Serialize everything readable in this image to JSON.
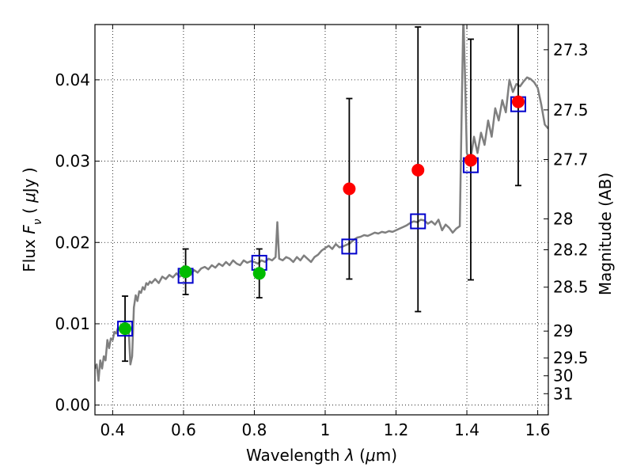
{
  "chart_data": {
    "type": "scatter",
    "xlabel": "Wavelength  λ (μm)",
    "ylabel": "Flux  F<sub>ν</sub> ( μJy )",
    "ylabel_right": "Magnitude (AB)",
    "xlim": [
      0.35,
      1.63
    ],
    "ylim": [
      -0.0012,
      0.0468
    ],
    "grid": true,
    "x_ticks": [
      0.4,
      0.6,
      0.8,
      1.0,
      1.2,
      1.4,
      1.6
    ],
    "x_tick_labels": [
      "0.4",
      "0.6",
      "0.8",
      "1",
      "1.2",
      "1.4",
      "1.6"
    ],
    "y_ticks": [
      0.0,
      0.01,
      0.02,
      0.03,
      0.04
    ],
    "y_tick_labels": [
      "0.00",
      "0.01",
      "0.02",
      "0.03",
      "0.04"
    ],
    "right_ticks": [
      {
        "label": "27.3",
        "flux": 0.0437
      },
      {
        "label": "27.5",
        "flux": 0.0363
      },
      {
        "label": "27.7",
        "flux": 0.0302
      },
      {
        "label": "28",
        "flux": 0.0229
      },
      {
        "label": "28.2",
        "flux": 0.0191
      },
      {
        "label": "28.5",
        "flux": 0.0145
      },
      {
        "label": "29",
        "flux": 0.0091
      },
      {
        "label": "29.5",
        "flux": 0.0058
      },
      {
        "label": "30",
        "flux": 0.0036
      },
      {
        "label": "31",
        "flux": 0.0014
      }
    ],
    "colors": {
      "sed_line": "#7f7f7f",
      "green": "#00bb00",
      "red": "#ff0000",
      "model": "#0000cc",
      "errorbar": "#000000"
    },
    "series": [
      {
        "values": [
          [
            0.35,
            0.0045
          ],
          [
            0.355,
            0.005
          ],
          [
            0.36,
            0.003
          ],
          [
            0.365,
            0.0055
          ],
          [
            0.37,
            0.0045
          ],
          [
            0.375,
            0.006
          ],
          [
            0.38,
            0.0055
          ],
          [
            0.385,
            0.008
          ],
          [
            0.39,
            0.007
          ],
          [
            0.395,
            0.0082
          ],
          [
            0.4,
            0.008
          ],
          [
            0.405,
            0.009
          ],
          [
            0.41,
            0.0088
          ],
          [
            0.415,
            0.0095
          ],
          [
            0.42,
            0.0092
          ],
          [
            0.425,
            0.0098
          ],
          [
            0.43,
            0.0096
          ],
          [
            0.435,
            0.0099
          ],
          [
            0.44,
            0.0098
          ],
          [
            0.445,
            0.0095
          ],
          [
            0.45,
            0.005
          ],
          [
            0.455,
            0.006
          ],
          [
            0.46,
            0.012
          ],
          [
            0.465,
            0.0135
          ],
          [
            0.47,
            0.0128
          ],
          [
            0.475,
            0.014
          ],
          [
            0.48,
            0.0138
          ],
          [
            0.485,
            0.0145
          ],
          [
            0.49,
            0.0142
          ],
          [
            0.495,
            0.015
          ],
          [
            0.5,
            0.0148
          ],
          [
            0.505,
            0.0152
          ],
          [
            0.51,
            0.015
          ],
          [
            0.52,
            0.0155
          ],
          [
            0.53,
            0.015
          ],
          [
            0.54,
            0.0158
          ],
          [
            0.55,
            0.0155
          ],
          [
            0.56,
            0.016
          ],
          [
            0.57,
            0.0157
          ],
          [
            0.58,
            0.0162
          ],
          [
            0.59,
            0.0158
          ],
          [
            0.6,
            0.0161
          ],
          [
            0.61,
            0.0163
          ],
          [
            0.62,
            0.016
          ],
          [
            0.63,
            0.0166
          ],
          [
            0.64,
            0.0163
          ],
          [
            0.65,
            0.0168
          ],
          [
            0.66,
            0.017
          ],
          [
            0.67,
            0.0167
          ],
          [
            0.68,
            0.0172
          ],
          [
            0.69,
            0.0169
          ],
          [
            0.7,
            0.0174
          ],
          [
            0.71,
            0.0171
          ],
          [
            0.72,
            0.0176
          ],
          [
            0.73,
            0.0172
          ],
          [
            0.74,
            0.0178
          ],
          [
            0.75,
            0.0174
          ],
          [
            0.76,
            0.0172
          ],
          [
            0.77,
            0.0178
          ],
          [
            0.78,
            0.0175
          ],
          [
            0.79,
            0.0177
          ],
          [
            0.8,
            0.0176
          ],
          [
            0.81,
            0.0174
          ],
          [
            0.82,
            0.0178
          ],
          [
            0.83,
            0.0176
          ],
          [
            0.84,
            0.018
          ],
          [
            0.85,
            0.0178
          ],
          [
            0.86,
            0.0182
          ],
          [
            0.865,
            0.0225
          ],
          [
            0.87,
            0.018
          ],
          [
            0.88,
            0.0178
          ],
          [
            0.89,
            0.0182
          ],
          [
            0.9,
            0.018
          ],
          [
            0.91,
            0.0176
          ],
          [
            0.92,
            0.0182
          ],
          [
            0.93,
            0.0178
          ],
          [
            0.94,
            0.0184
          ],
          [
            0.95,
            0.018
          ],
          [
            0.96,
            0.0176
          ],
          [
            0.97,
            0.0182
          ],
          [
            0.98,
            0.0185
          ],
          [
            0.99,
            0.019
          ],
          [
            1.0,
            0.0193
          ],
          [
            1.01,
            0.0196
          ],
          [
            1.02,
            0.0192
          ],
          [
            1.03,
            0.0198
          ],
          [
            1.04,
            0.0194
          ],
          [
            1.05,
            0.0195
          ],
          [
            1.06,
            0.0197
          ],
          [
            1.07,
            0.0199
          ],
          [
            1.08,
            0.0203
          ],
          [
            1.09,
            0.0206
          ],
          [
            1.1,
            0.0207
          ],
          [
            1.11,
            0.0209
          ],
          [
            1.12,
            0.0208
          ],
          [
            1.13,
            0.021
          ],
          [
            1.14,
            0.0212
          ],
          [
            1.15,
            0.0211
          ],
          [
            1.16,
            0.0213
          ],
          [
            1.17,
            0.0212
          ],
          [
            1.18,
            0.0214
          ],
          [
            1.19,
            0.0213
          ],
          [
            1.2,
            0.0215
          ],
          [
            1.21,
            0.0217
          ],
          [
            1.22,
            0.0219
          ],
          [
            1.23,
            0.0221
          ],
          [
            1.24,
            0.0224
          ],
          [
            1.25,
            0.0226
          ],
          [
            1.26,
            0.0225
          ],
          [
            1.27,
            0.0228
          ],
          [
            1.28,
            0.0227
          ],
          [
            1.29,
            0.0223
          ],
          [
            1.3,
            0.0226
          ],
          [
            1.31,
            0.0222
          ],
          [
            1.32,
            0.0228
          ],
          [
            1.33,
            0.0215
          ],
          [
            1.34,
            0.0222
          ],
          [
            1.35,
            0.0218
          ],
          [
            1.36,
            0.0212
          ],
          [
            1.37,
            0.0217
          ],
          [
            1.38,
            0.022
          ],
          [
            1.385,
            0.035
          ],
          [
            1.39,
            0.048
          ],
          [
            1.395,
            0.04
          ],
          [
            1.4,
            0.031
          ],
          [
            1.41,
            0.03
          ],
          [
            1.42,
            0.033
          ],
          [
            1.43,
            0.031
          ],
          [
            1.44,
            0.0335
          ],
          [
            1.45,
            0.032
          ],
          [
            1.46,
            0.035
          ],
          [
            1.47,
            0.033
          ],
          [
            1.48,
            0.0365
          ],
          [
            1.49,
            0.035
          ],
          [
            1.5,
            0.0375
          ],
          [
            1.51,
            0.036
          ],
          [
            1.52,
            0.04
          ],
          [
            1.53,
            0.0385
          ],
          [
            1.54,
            0.0395
          ],
          [
            1.55,
            0.0392
          ],
          [
            1.56,
            0.0398
          ],
          [
            1.57,
            0.0403
          ],
          [
            1.58,
            0.0401
          ],
          [
            1.59,
            0.0397
          ],
          [
            1.6,
            0.039
          ],
          [
            1.61,
            0.037
          ],
          [
            1.62,
            0.0345
          ],
          [
            1.63,
            0.034
          ]
        ]
      },
      {
        "points": [
          {
            "x": 0.435,
            "y": 0.0094,
            "yerr": 0.004
          },
          {
            "x": 0.606,
            "y": 0.0164,
            "yerr": 0.0028
          },
          {
            "x": 0.814,
            "y": 0.0162,
            "yerr": 0.003
          }
        ]
      },
      {
        "points": [
          {
            "x": 1.068,
            "y": 0.0266,
            "yerr_low": 0.0111,
            "yerr_high": 0.0111
          },
          {
            "x": 1.262,
            "y": 0.0289,
            "yerr_low": 0.0174,
            "yerr_high": 0.0176
          },
          {
            "x": 1.411,
            "y": 0.0301,
            "yerr_low": 0.0147,
            "yerr_high": 0.0149
          },
          {
            "x": 1.545,
            "y": 0.0373,
            "yerr_low": 0.0103,
            "yerr_high": 0.011
          }
        ]
      },
      {
        "points": [
          {
            "x": 0.435,
            "y": 0.0094
          },
          {
            "x": 0.606,
            "y": 0.0159
          },
          {
            "x": 0.814,
            "y": 0.0175
          },
          {
            "x": 1.068,
            "y": 0.0195
          },
          {
            "x": 1.262,
            "y": 0.0226
          },
          {
            "x": 1.411,
            "y": 0.0295
          },
          {
            "x": 1.545,
            "y": 0.037
          }
        ]
      }
    ]
  }
}
